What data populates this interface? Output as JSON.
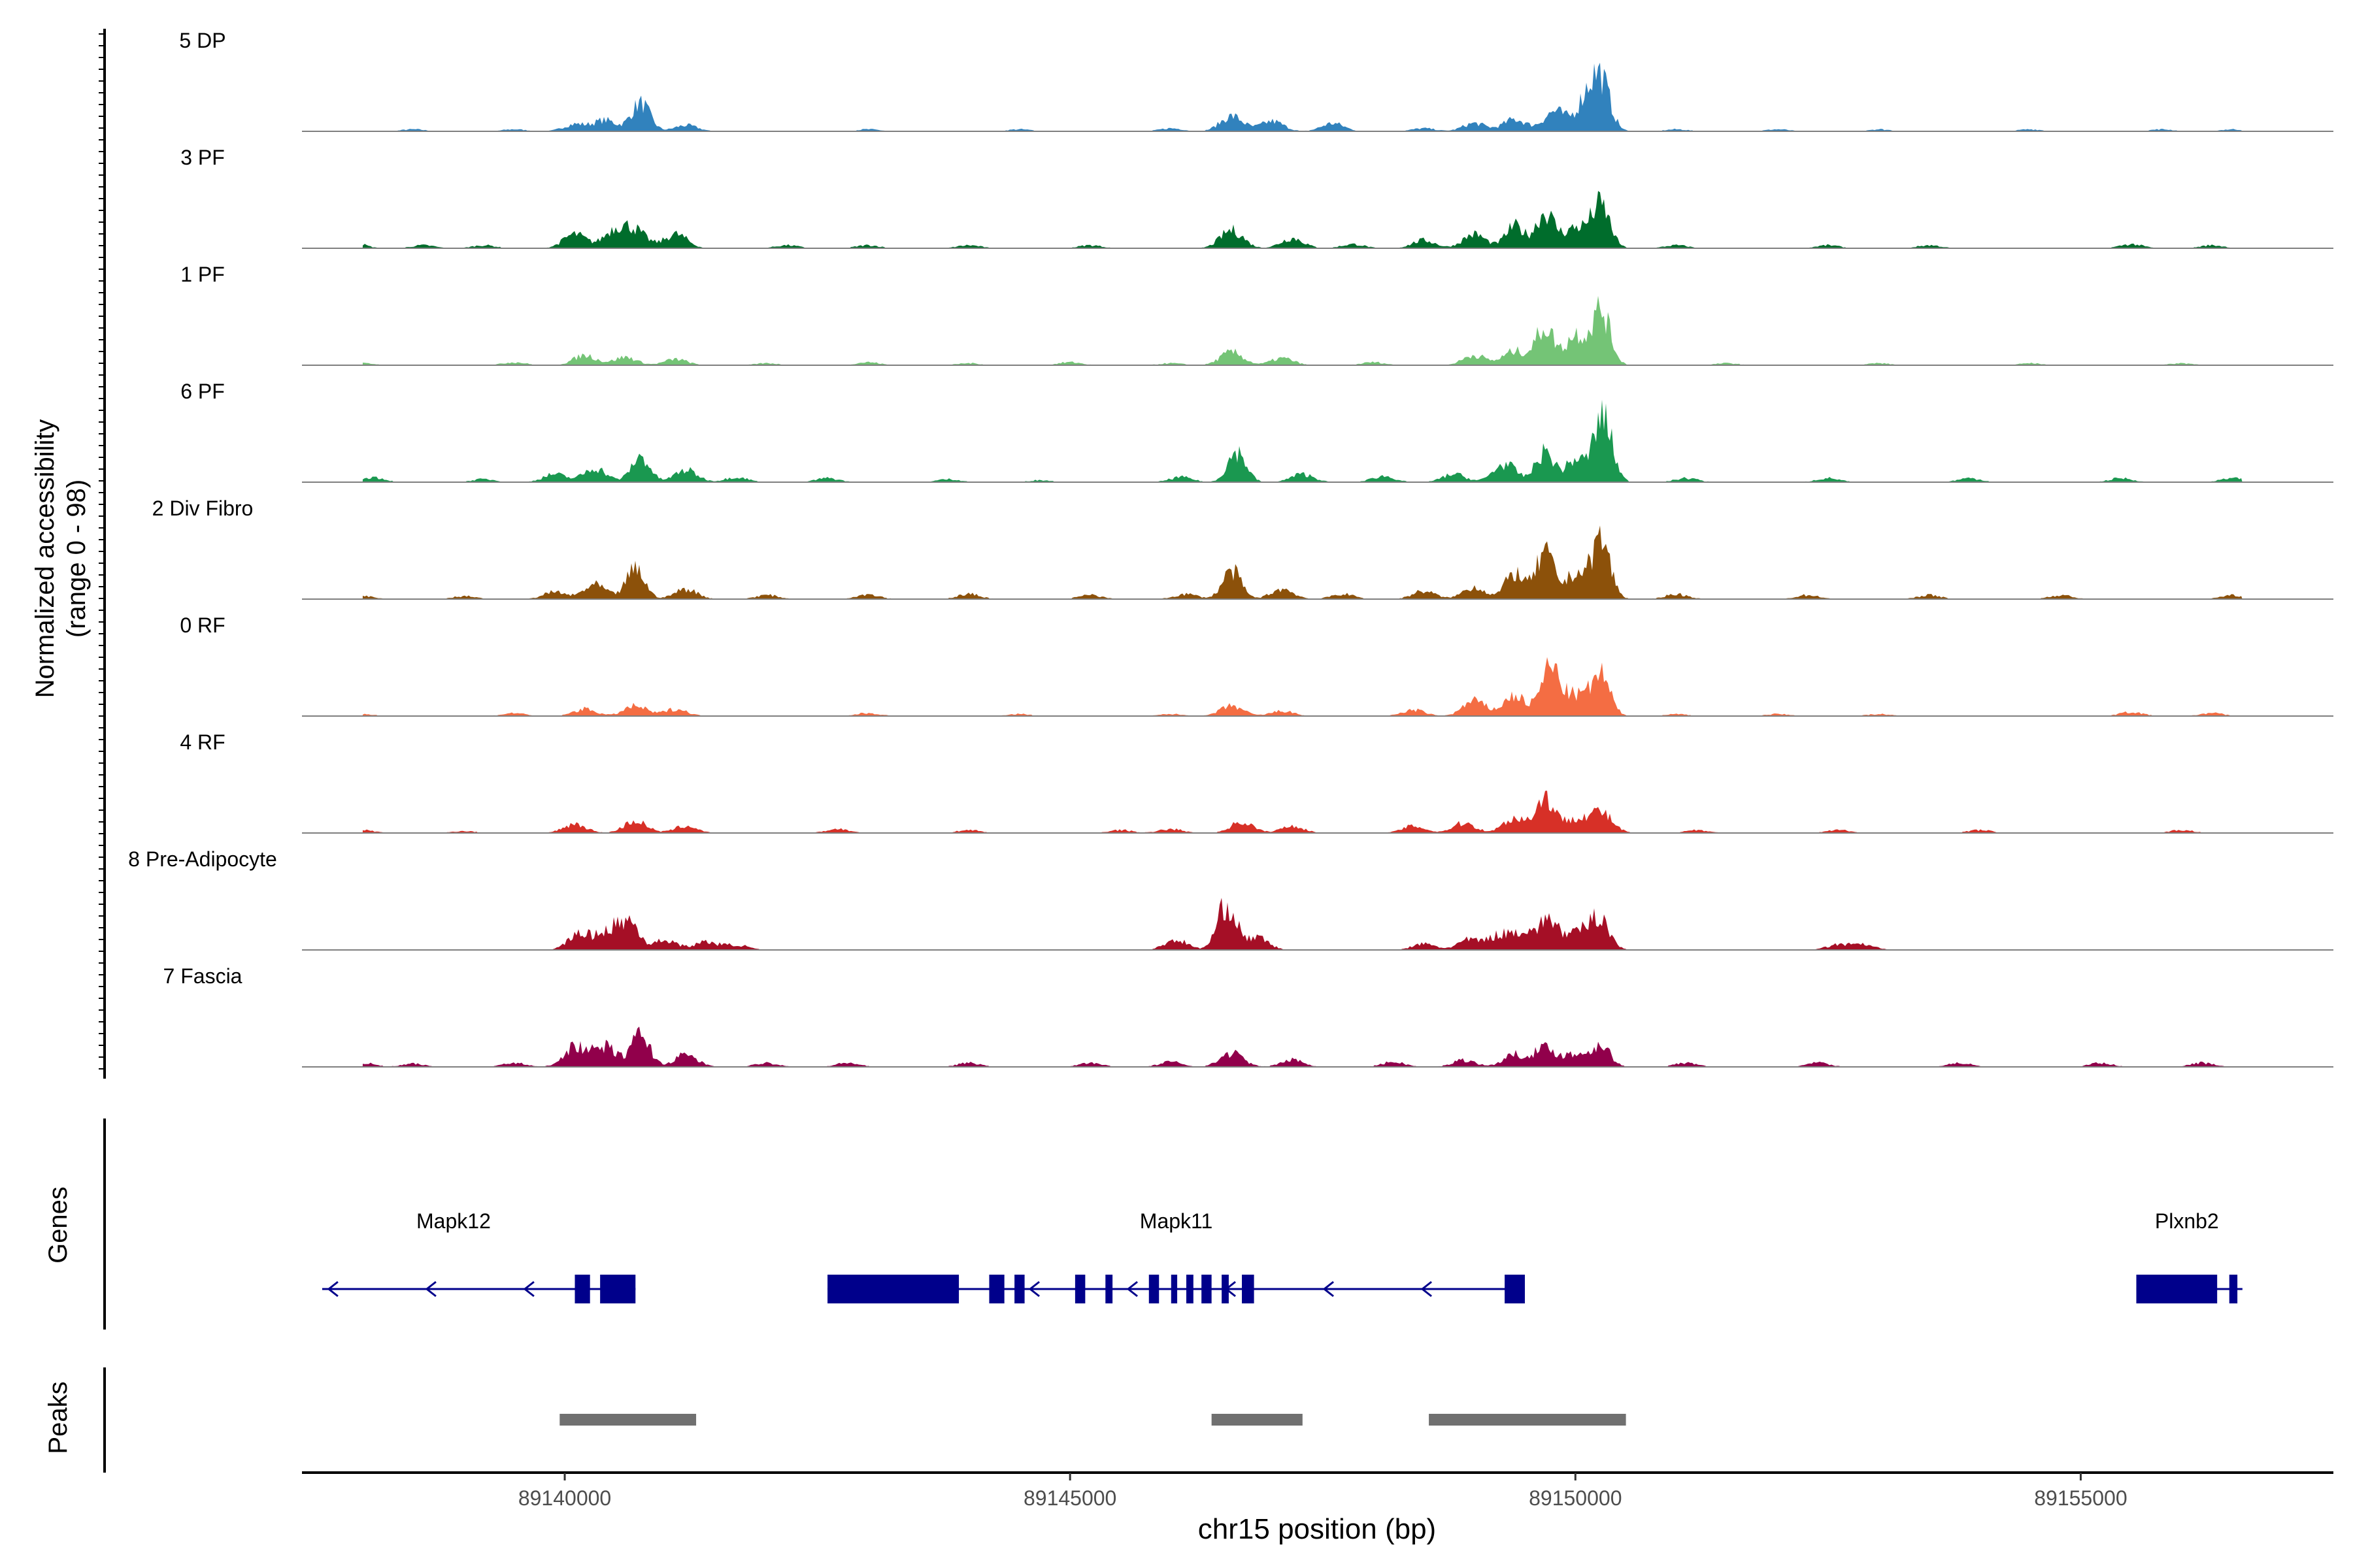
{
  "chart_data": {
    "type": "area",
    "chrom": "chr15",
    "xlim": [
      89137400,
      89157500
    ],
    "xlabel": "chr15 position (bp)",
    "x_ticks": [
      89140000,
      89145000,
      89150000,
      89155000
    ],
    "x_tick_labels": [
      "89140000",
      "89145000",
      "89150000",
      "89155000"
    ],
    "ylabel_line1": "Normalized accessibility",
    "ylabel_line2": "(range 0 - 98)",
    "ylim": [
      0,
      98
    ],
    "tracks": [
      {
        "name": "5 DP",
        "color": "#3182BD",
        "peaks": [
          [
            89138500,
            2
          ],
          [
            89139500,
            2
          ],
          [
            89140100,
            7
          ],
          [
            89140400,
            11
          ],
          [
            89140750,
            28
          ],
          [
            89141200,
            6
          ],
          [
            89143000,
            2
          ],
          [
            89144500,
            2
          ],
          [
            89146000,
            3
          ],
          [
            89146600,
            15
          ],
          [
            89147000,
            10
          ],
          [
            89147600,
            8
          ],
          [
            89148500,
            3
          ],
          [
            89149000,
            8
          ],
          [
            89149400,
            12
          ],
          [
            89149800,
            20
          ],
          [
            89150100,
            28
          ],
          [
            89150250,
            50
          ],
          [
            89151000,
            2
          ],
          [
            89152000,
            2
          ],
          [
            89153000,
            2
          ],
          [
            89154500,
            2
          ],
          [
            89155800,
            2
          ],
          [
            89156500,
            2
          ]
        ]
      },
      {
        "name": "3 PF",
        "color": "#006D2C",
        "peaks": [
          [
            89137900,
            6
          ],
          [
            89138600,
            3
          ],
          [
            89139200,
            3
          ],
          [
            89140100,
            14
          ],
          [
            89140500,
            18
          ],
          [
            89140700,
            16
          ],
          [
            89141100,
            14
          ],
          [
            89142200,
            3
          ],
          [
            89143000,
            3
          ],
          [
            89144000,
            3
          ],
          [
            89145200,
            3
          ],
          [
            89146600,
            18
          ],
          [
            89147200,
            10
          ],
          [
            89147800,
            4
          ],
          [
            89148500,
            8
          ],
          [
            89149000,
            14
          ],
          [
            89149400,
            22
          ],
          [
            89149700,
            35
          ],
          [
            89150000,
            20
          ],
          [
            89150250,
            42
          ],
          [
            89151000,
            3
          ],
          [
            89152500,
            3
          ],
          [
            89153500,
            3
          ],
          [
            89155500,
            4
          ],
          [
            89156300,
            3
          ]
        ]
      },
      {
        "name": "1 PF",
        "color": "#74C476",
        "peaks": [
          [
            89138000,
            2
          ],
          [
            89139500,
            3
          ],
          [
            89140200,
            10
          ],
          [
            89140600,
            8
          ],
          [
            89141100,
            6
          ],
          [
            89142000,
            2
          ],
          [
            89143000,
            3
          ],
          [
            89144000,
            2
          ],
          [
            89145000,
            3
          ],
          [
            89146000,
            2
          ],
          [
            89146600,
            13
          ],
          [
            89147100,
            7
          ],
          [
            89148000,
            3
          ],
          [
            89149000,
            10
          ],
          [
            89149400,
            14
          ],
          [
            89149700,
            38
          ],
          [
            89150000,
            30
          ],
          [
            89150250,
            55
          ],
          [
            89151500,
            2
          ],
          [
            89153000,
            2
          ],
          [
            89154500,
            2
          ],
          [
            89156000,
            2
          ]
        ]
      },
      {
        "name": "6 PF",
        "color": "#1A9850",
        "peaks": [
          [
            89138100,
            5
          ],
          [
            89139200,
            3
          ],
          [
            89139900,
            8
          ],
          [
            89140300,
            14
          ],
          [
            89140750,
            25
          ],
          [
            89141200,
            12
          ],
          [
            89141700,
            5
          ],
          [
            89142600,
            4
          ],
          [
            89143800,
            3
          ],
          [
            89144700,
            2
          ],
          [
            89146100,
            5
          ],
          [
            89146650,
            30
          ],
          [
            89147300,
            8
          ],
          [
            89148100,
            6
          ],
          [
            89148800,
            8
          ],
          [
            89149300,
            18
          ],
          [
            89149700,
            30
          ],
          [
            89150000,
            22
          ],
          [
            89150270,
            65
          ],
          [
            89151100,
            4
          ],
          [
            89152500,
            4
          ],
          [
            89153900,
            4
          ],
          [
            89155400,
            4
          ],
          [
            89156500,
            4
          ]
        ]
      },
      {
        "name": "2 Div Fibro",
        "color": "#8C510A",
        "peaks": [
          [
            89138000,
            3
          ],
          [
            89139000,
            3
          ],
          [
            89139900,
            7
          ],
          [
            89140300,
            14
          ],
          [
            89140700,
            30
          ],
          [
            89141200,
            10
          ],
          [
            89142000,
            4
          ],
          [
            89143000,
            5
          ],
          [
            89144000,
            5
          ],
          [
            89145200,
            4
          ],
          [
            89146150,
            5
          ],
          [
            89146600,
            28
          ],
          [
            89147100,
            10
          ],
          [
            89147700,
            5
          ],
          [
            89148500,
            8
          ],
          [
            89149000,
            12
          ],
          [
            89149400,
            26
          ],
          [
            89149700,
            45
          ],
          [
            89150000,
            25
          ],
          [
            89150250,
            60
          ],
          [
            89151000,
            5
          ],
          [
            89152300,
            4
          ],
          [
            89153500,
            4
          ],
          [
            89154800,
            4
          ],
          [
            89156500,
            4
          ]
        ]
      },
      {
        "name": "0 RF",
        "color": "#F46D43",
        "peaks": [
          [
            89138000,
            2
          ],
          [
            89139500,
            3
          ],
          [
            89140200,
            7
          ],
          [
            89140700,
            10
          ],
          [
            89141100,
            7
          ],
          [
            89143000,
            3
          ],
          [
            89144500,
            2
          ],
          [
            89146000,
            2
          ],
          [
            89146600,
            10
          ],
          [
            89147100,
            5
          ],
          [
            89148400,
            6
          ],
          [
            89149000,
            15
          ],
          [
            89149400,
            20
          ],
          [
            89149750,
            48
          ],
          [
            89150000,
            20
          ],
          [
            89150250,
            40
          ],
          [
            89151000,
            2
          ],
          [
            89152000,
            2
          ],
          [
            89153000,
            2
          ],
          [
            89155500,
            4
          ],
          [
            89156300,
            3
          ]
        ]
      },
      {
        "name": "4 RF",
        "color": "#D73027",
        "peaks": [
          [
            89138000,
            3
          ],
          [
            89139000,
            2
          ],
          [
            89140100,
            9
          ],
          [
            89140700,
            12
          ],
          [
            89141200,
            7
          ],
          [
            89142700,
            4
          ],
          [
            89144000,
            3
          ],
          [
            89145500,
            3
          ],
          [
            89146000,
            4
          ],
          [
            89146700,
            11
          ],
          [
            89147200,
            7
          ],
          [
            89148400,
            7
          ],
          [
            89148900,
            10
          ],
          [
            89149400,
            15
          ],
          [
            89149700,
            35
          ],
          [
            89150000,
            14
          ],
          [
            89150250,
            20
          ],
          [
            89151200,
            3
          ],
          [
            89152600,
            3
          ],
          [
            89154000,
            3
          ],
          [
            89156000,
            3
          ]
        ]
      },
      {
        "name": "8 Pre-Adipocyte",
        "color": "#A50F26",
        "peaks": [
          [
            89140150,
            16
          ],
          [
            89140450,
            20
          ],
          [
            89140650,
            25
          ],
          [
            89141000,
            10
          ],
          [
            89141400,
            8
          ],
          [
            89141700,
            5
          ],
          [
            89146050,
            10
          ],
          [
            89146550,
            45
          ],
          [
            89146850,
            12
          ],
          [
            89148500,
            6
          ],
          [
            89148950,
            10
          ],
          [
            89149250,
            14
          ],
          [
            89149500,
            18
          ],
          [
            89149750,
            30
          ],
          [
            89150050,
            18
          ],
          [
            89150250,
            30
          ],
          [
            89152600,
            5
          ],
          [
            89152850,
            5
          ]
        ]
      },
      {
        "name": "7 Fascia",
        "color": "#91004B",
        "peaks": [
          [
            89138000,
            4
          ],
          [
            89138500,
            3
          ],
          [
            89139500,
            4
          ],
          [
            89140100,
            20
          ],
          [
            89140400,
            20
          ],
          [
            89140750,
            32
          ],
          [
            89141200,
            12
          ],
          [
            89142000,
            4
          ],
          [
            89142800,
            4
          ],
          [
            89144000,
            4
          ],
          [
            89145200,
            4
          ],
          [
            89146000,
            5
          ],
          [
            89146600,
            14
          ],
          [
            89147200,
            7
          ],
          [
            89148200,
            5
          ],
          [
            89148900,
            7
          ],
          [
            89149400,
            12
          ],
          [
            89149700,
            18
          ],
          [
            89150000,
            12
          ],
          [
            89150250,
            22
          ],
          [
            89151100,
            4
          ],
          [
            89152400,
            4
          ],
          [
            89153800,
            4
          ],
          [
            89155200,
            4
          ],
          [
            89156200,
            4
          ]
        ]
      }
    ],
    "genes_label": "Genes",
    "genes": [
      {
        "name": "Mapk12",
        "start": 89137600,
        "end": 89140700,
        "strand": "-",
        "label_x": 89138900,
        "exons": [
          [
            89140100,
            89140250
          ],
          [
            89140350,
            89140700
          ]
        ]
      },
      {
        "name": "Mapk11",
        "start": 89142600,
        "end": 89149500,
        "strand": "-",
        "label_x": 89146050,
        "exons": [
          [
            89142600,
            89143900
          ],
          [
            89144200,
            89144350
          ],
          [
            89144450,
            89144550
          ],
          [
            89145050,
            89145150
          ],
          [
            89145350,
            89145420
          ],
          [
            89145780,
            89145880
          ],
          [
            89146000,
            89146060
          ],
          [
            89146150,
            89146220
          ],
          [
            89146300,
            89146400
          ],
          [
            89146500,
            89146570
          ],
          [
            89146700,
            89146820
          ],
          [
            89149300,
            89149500
          ]
        ]
      },
      {
        "name": "Plxnb2",
        "start": 89155550,
        "end": 89156600,
        "strand": "-",
        "label_x": 89156050,
        "exons": [
          [
            89155550,
            89156350
          ],
          [
            89156470,
            89156550
          ]
        ]
      }
    ],
    "peaks_label": "Peaks",
    "peak_regions": [
      [
        89139950,
        89141300
      ],
      [
        89146400,
        89147300
      ],
      [
        89148550,
        89150500
      ]
    ]
  }
}
